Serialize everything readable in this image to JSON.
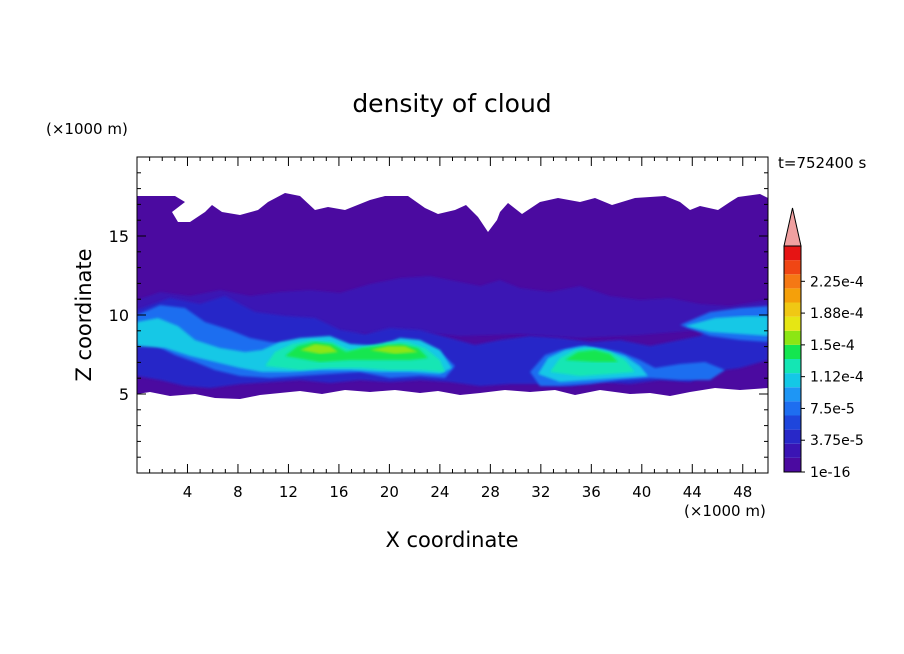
{
  "chart_data": {
    "type": "heatmap",
    "title": "density of cloud",
    "xlabel": "X coordinate",
    "ylabel": "Z coordinate",
    "x_unit": "(×1000 m)",
    "y_unit": "(×1000 m)",
    "time_label": "t=752400 s",
    "xlim": [
      0,
      50
    ],
    "ylim": [
      0,
      20
    ],
    "x_ticks": [
      4,
      8,
      12,
      16,
      20,
      24,
      28,
      32,
      36,
      40,
      44,
      48
    ],
    "y_ticks": [
      5,
      10,
      15
    ],
    "colorbar": {
      "min": 1e-16,
      "max": 0.00025,
      "labels": [
        "1e-16",
        "3.75e-5",
        "7.5e-5",
        "1.12e-4",
        "1.5e-4",
        "1.88e-4",
        "2.25e-4"
      ],
      "colors": [
        "#4b0aa0",
        "#3a14b4",
        "#2828c8",
        "#1e46dc",
        "#1e6ef0",
        "#1e96f5",
        "#14c8e6",
        "#14e6b4",
        "#14e650",
        "#8ce614",
        "#e6e614",
        "#f0c814",
        "#f5a00a",
        "#f57814",
        "#f04614",
        "#e61414"
      ],
      "over_color": "#f0a0a0"
    },
    "cloud_regions": [
      {
        "level": "1e-16",
        "x_range": [
          0,
          50
        ],
        "z_range": [
          5,
          17.5
        ]
      },
      {
        "level": "3.75e-5",
        "x_range": [
          0,
          50
        ],
        "z_range": [
          6,
          11
        ]
      },
      {
        "level": "1.12e-4",
        "x_range": [
          10,
          24
        ],
        "z_range": [
          6.5,
          8.5
        ]
      },
      {
        "level": "1.5e-4",
        "x_range": [
          12,
          23
        ],
        "z_range": [
          7.3,
          8.3
        ]
      },
      {
        "level": "1.12e-4",
        "x_range": [
          32,
          40
        ],
        "z_range": [
          6.5,
          8
        ]
      }
    ]
  }
}
